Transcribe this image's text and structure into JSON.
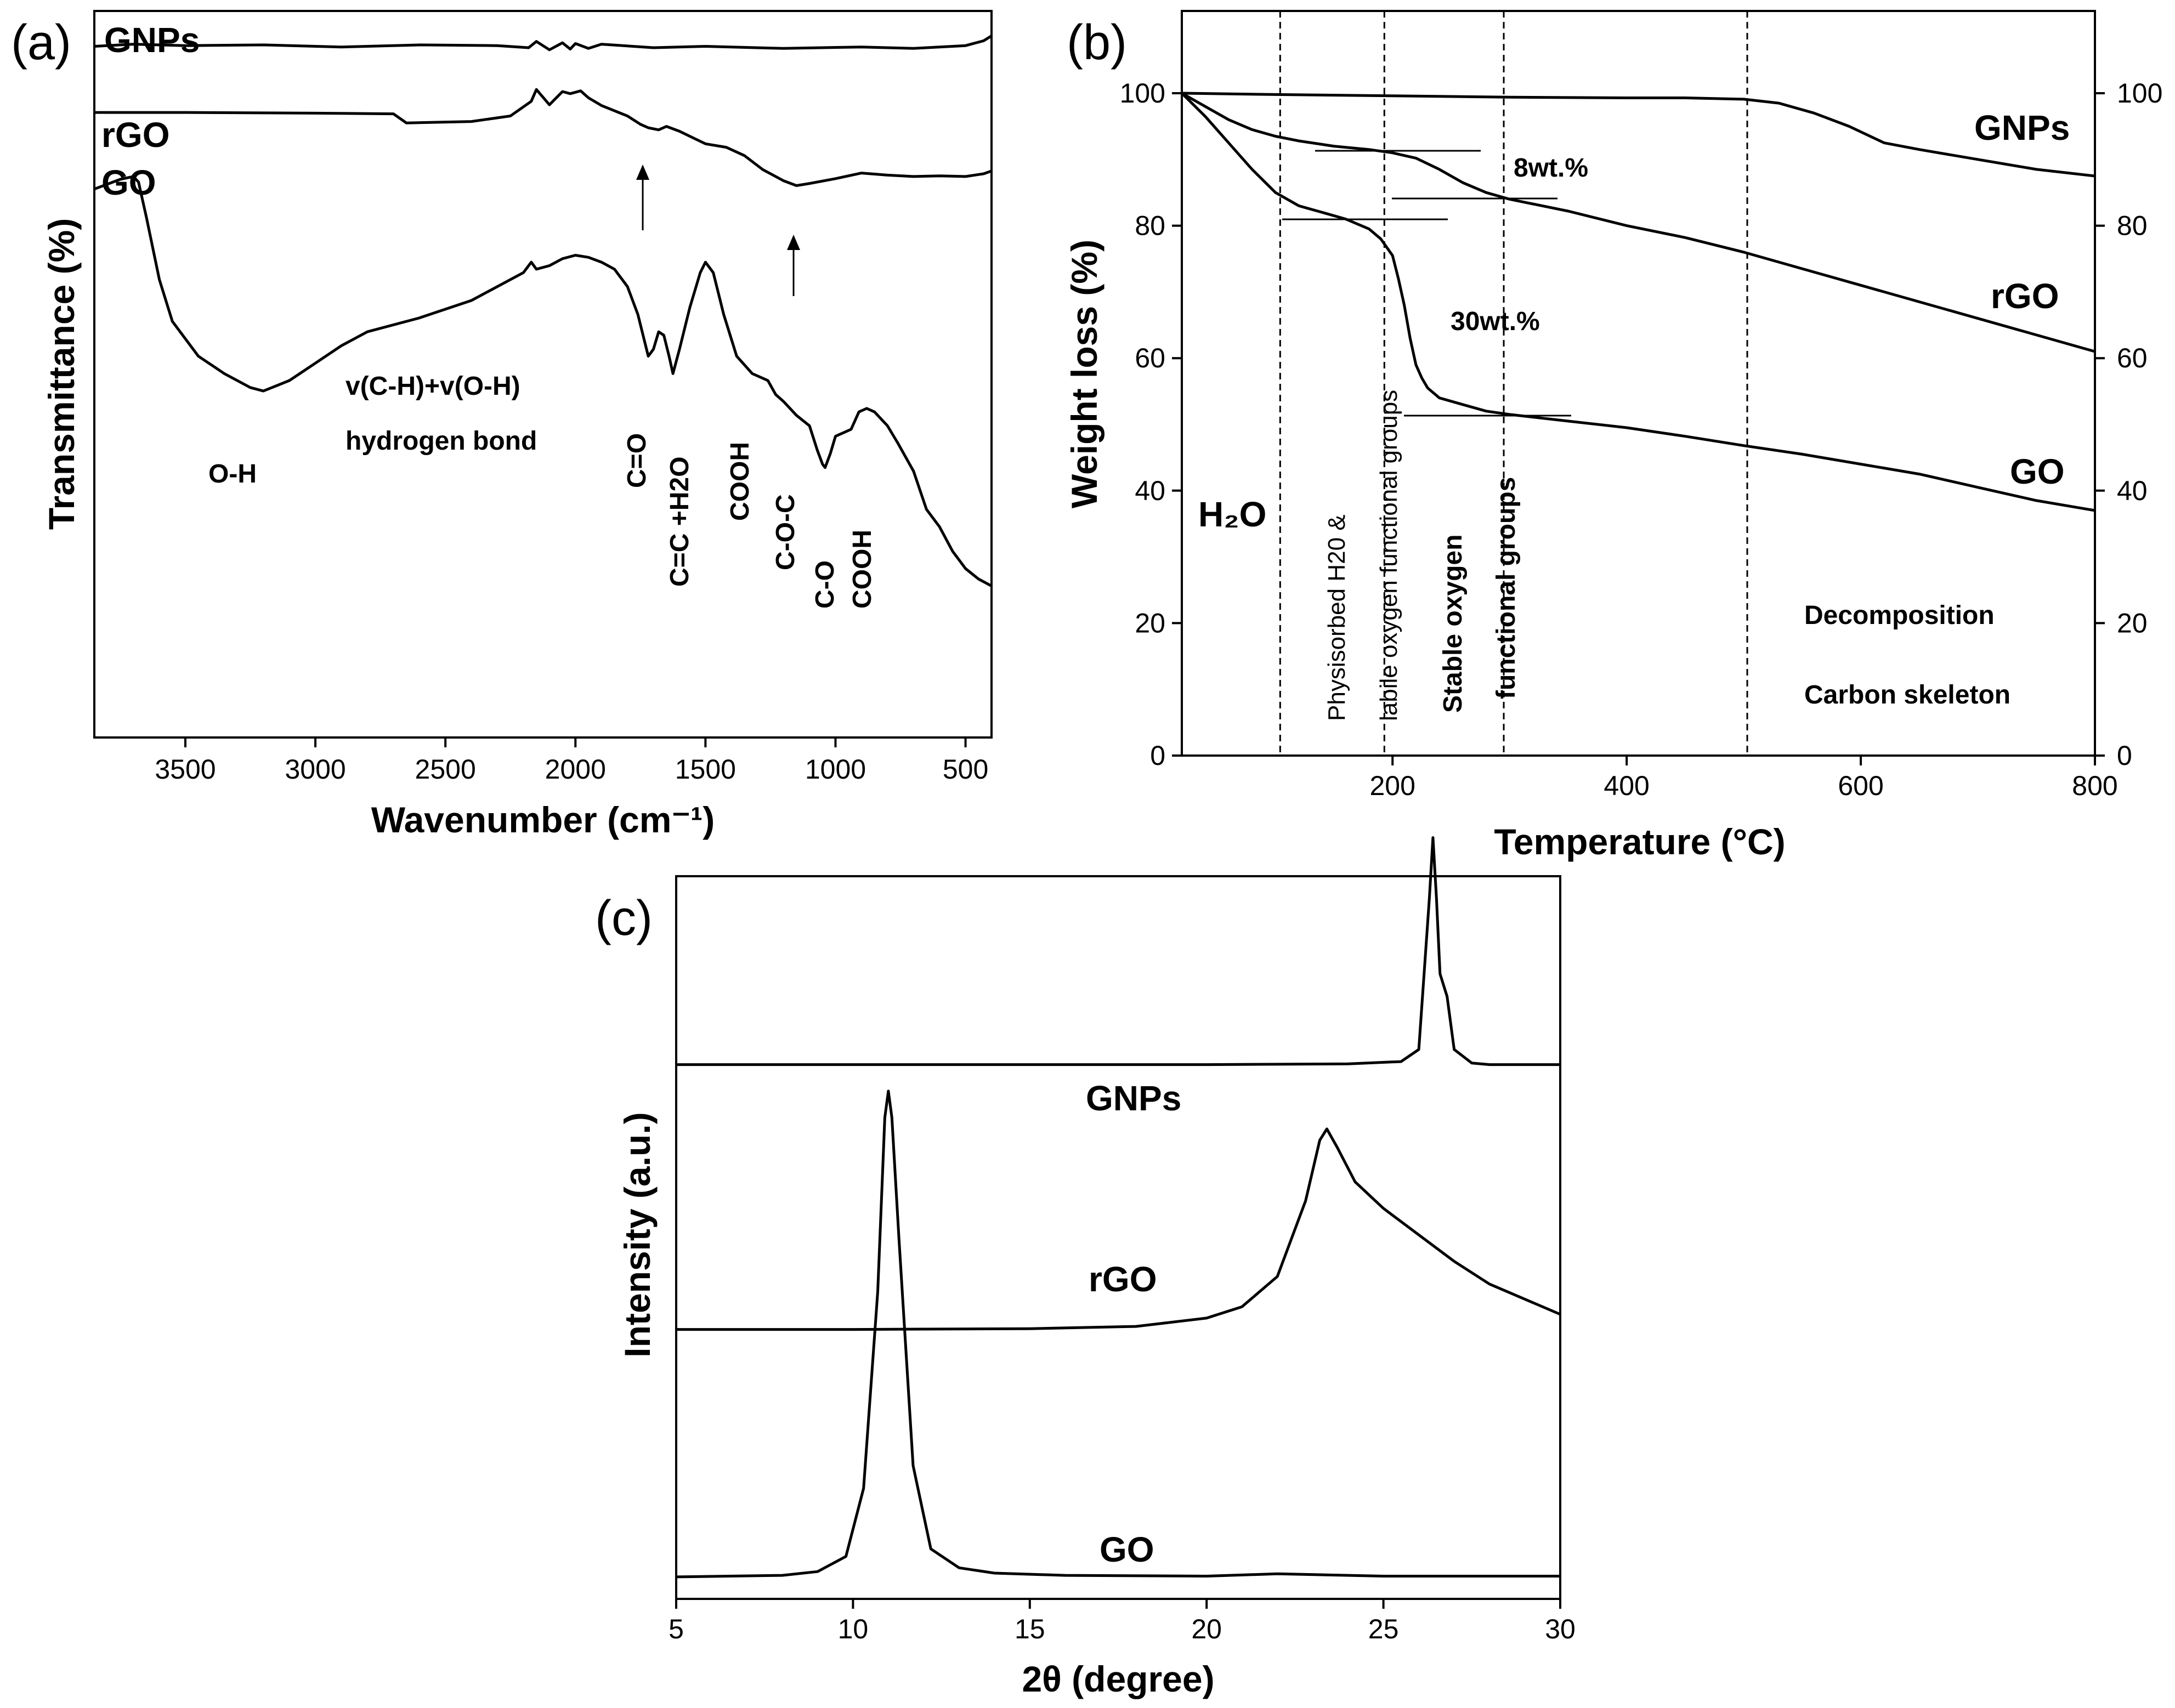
{
  "colors": {
    "line": "#000000",
    "background": "#ffffff"
  },
  "chart_data": [
    {
      "id": "a",
      "type": "line",
      "panel_label": "(a)",
      "title": "",
      "xlabel": "Wavenumber (cm⁻¹)",
      "ylabel": "Transmittance (%)",
      "xlim": [
        3850,
        400
      ],
      "x_reversed": true,
      "ylim": [
        0,
        100
      ],
      "xticks": [
        3500,
        3000,
        2500,
        2000,
        1500,
        1000,
        500
      ],
      "grid": false,
      "series": [
        {
          "name": "GNPs",
          "label": "GNPs",
          "x": [
            3850,
            3700,
            3500,
            3200,
            2900,
            2600,
            2300,
            2180,
            2150,
            2100,
            2050,
            2020,
            2000,
            1950,
            1900,
            1700,
            1500,
            1200,
            900,
            700,
            500,
            430,
            400
          ],
          "y": [
            96.5,
            96.8,
            96.6,
            96.7,
            96.4,
            96.7,
            96.6,
            96.3,
            97.2,
            96.0,
            97.0,
            96.1,
            96.9,
            96.2,
            96.8,
            96.3,
            96.5,
            96.2,
            96.4,
            96.2,
            96.6,
            97.3,
            98.0
          ]
        },
        {
          "name": "rGO",
          "label": "rGO",
          "x": [
            3850,
            3500,
            3000,
            2700,
            2650,
            2400,
            2250,
            2170,
            2150,
            2100,
            2050,
            2020,
            1980,
            1950,
            1900,
            1800,
            1750,
            1720,
            1680,
            1650,
            1600,
            1500,
            1420,
            1350,
            1280,
            1200,
            1150,
            1100,
            1000,
            900,
            800,
            700,
            600,
            500,
            430,
            400
          ],
          "y": [
            87.0,
            87.0,
            86.9,
            86.8,
            85.5,
            85.7,
            86.5,
            88.6,
            90.3,
            88.1,
            90.0,
            89.7,
            90.1,
            89.1,
            88.0,
            86.5,
            85.3,
            84.8,
            84.5,
            85.0,
            84.3,
            82.5,
            82.0,
            80.8,
            78.8,
            77.2,
            76.5,
            76.8,
            77.5,
            78.3,
            78.0,
            77.8,
            77.9,
            77.8,
            78.2,
            78.6
          ]
        },
        {
          "name": "GO",
          "label": "GO",
          "x": [
            3850,
            3750,
            3700,
            3680,
            3650,
            3600,
            3550,
            3450,
            3350,
            3250,
            3200,
            3100,
            3000,
            2900,
            2800,
            2600,
            2400,
            2200,
            2170,
            2150,
            2100,
            2050,
            2000,
            1950,
            1900,
            1850,
            1800,
            1760,
            1720,
            1700,
            1680,
            1660,
            1640,
            1625,
            1600,
            1560,
            1520,
            1500,
            1470,
            1430,
            1380,
            1320,
            1260,
            1230,
            1200,
            1150,
            1100,
            1070,
            1050,
            1040,
            1020,
            1000,
            970,
            940,
            910,
            880,
            850,
            800,
            760,
            700,
            650,
            600,
            550,
            500,
            450,
            400
          ],
          "y": [
            76.0,
            77.4,
            77.8,
            77.0,
            72.0,
            63.0,
            57.0,
            52.0,
            49.5,
            47.5,
            47.0,
            48.5,
            51.0,
            53.5,
            55.5,
            57.5,
            60.0,
            64.0,
            65.5,
            64.5,
            65.0,
            66.0,
            66.5,
            66.2,
            65.5,
            64.5,
            62.0,
            58.0,
            52.0,
            53.0,
            55.5,
            55.0,
            52.0,
            49.5,
            53.0,
            59.0,
            64.0,
            65.5,
            64.0,
            58.0,
            52.0,
            49.5,
            48.5,
            46.5,
            45.5,
            43.5,
            42.0,
            38.5,
            36.5,
            36.0,
            38.0,
            40.5,
            41.0,
            41.5,
            44.0,
            44.5,
            44.0,
            42.0,
            39.5,
            35.5,
            30.0,
            27.5,
            24.0,
            21.5,
            20.0,
            19.0
          ]
        }
      ],
      "annotations": [
        "O-H",
        "v(C-H)+v(O-H)",
        "hydrogen bond",
        "C=O",
        "C=C +H2O",
        "COOH",
        "C-O-C",
        "C-O",
        "COOH"
      ]
    },
    {
      "id": "b",
      "type": "line",
      "panel_label": "(b)",
      "title": "",
      "xlabel": "Temperature (°C)",
      "ylabel": "Weight loss (%)",
      "xlim": [
        20,
        800
      ],
      "ylim": [
        0,
        110
      ],
      "xticks": [
        200,
        400,
        600,
        800
      ],
      "yticks": [
        0,
        20,
        40,
        60,
        80,
        100
      ],
      "right_yticks": [
        0,
        20,
        40,
        60,
        80,
        100
      ],
      "dashed_x": [
        104,
        193,
        295,
        503
      ],
      "grid": false,
      "series": [
        {
          "name": "GNPs",
          "label": "GNPs",
          "x": [
            20,
            100,
            200,
            300,
            400,
            450,
            500,
            530,
            560,
            590,
            620,
            650,
            700,
            750,
            800
          ],
          "y": [
            100,
            99.8,
            99.6,
            99.4,
            99.3,
            99.3,
            99.1,
            98.5,
            97.0,
            95.0,
            92.5,
            91.5,
            90.0,
            88.5,
            87.5
          ]
        },
        {
          "name": "rGO",
          "label": "rGO",
          "x": [
            20,
            40,
            60,
            80,
            100,
            120,
            150,
            180,
            200,
            220,
            240,
            260,
            280,
            300,
            350,
            400,
            450,
            500,
            550,
            600,
            650,
            700,
            750,
            800
          ],
          "y": [
            100,
            98.0,
            96.0,
            94.5,
            93.5,
            92.8,
            92.0,
            91.5,
            91.0,
            90.2,
            88.5,
            86.5,
            85.0,
            84.0,
            82.2,
            80.0,
            78.2,
            76.0,
            73.5,
            71.0,
            68.5,
            66.0,
            63.5,
            61.0
          ]
        },
        {
          "name": "GO",
          "label": "GO",
          "x": [
            20,
            40,
            60,
            80,
            100,
            120,
            140,
            160,
            180,
            190,
            200,
            205,
            210,
            215,
            220,
            225,
            230,
            240,
            260,
            280,
            300,
            350,
            400,
            450,
            500,
            550,
            600,
            650,
            700,
            750,
            800
          ],
          "y": [
            100,
            96.5,
            92.5,
            88.5,
            85.0,
            83.0,
            82.0,
            81.0,
            79.5,
            78.0,
            75.5,
            72.0,
            68.0,
            63.0,
            59.0,
            57.0,
            55.5,
            54.0,
            53.0,
            52.0,
            51.5,
            50.5,
            49.5,
            48.2,
            46.8,
            45.5,
            44.0,
            42.5,
            40.5,
            38.5,
            37.0
          ]
        }
      ],
      "annotations": [
        "8wt.%",
        "30wt.%",
        "H₂O",
        "Physisorbed  H20 &",
        "labile oxygen functional groups",
        "Stable oxygen",
        "functional groups",
        "Decomposition",
        "Carbon skeleton"
      ]
    },
    {
      "id": "c",
      "type": "line",
      "panel_label": "(c)",
      "title": "",
      "xlabel": "2θ (degree)",
      "ylabel": "Intensity (a.u.)",
      "xlim": [
        5,
        30
      ],
      "ylim": [
        0,
        100
      ],
      "xticks": [
        5,
        10,
        15,
        20,
        25,
        30
      ],
      "grid": false,
      "series": [
        {
          "name": "GNPs",
          "label": "GNPs",
          "x": [
            5,
            10,
            15,
            20,
            24,
            25.5,
            26.0,
            26.3,
            26.4,
            26.5,
            26.6,
            26.8,
            27.0,
            27.5,
            28,
            30
          ],
          "y": [
            68.0,
            68.0,
            68.0,
            68.0,
            68.1,
            68.4,
            70.0,
            90.0,
            98.0,
            90.0,
            80.0,
            77.0,
            70.0,
            68.2,
            68.0,
            68.0
          ]
        },
        {
          "name": "rGO",
          "label": "rGO",
          "x": [
            5,
            10,
            15,
            18,
            20,
            21,
            22,
            22.8,
            23.2,
            23.4,
            23.7,
            24.2,
            25,
            26,
            27,
            28,
            29,
            30
          ],
          "y": [
            33.0,
            33.0,
            33.1,
            33.4,
            34.5,
            36.0,
            40.0,
            50.0,
            58.0,
            59.5,
            57.0,
            52.5,
            49.0,
            45.5,
            42.0,
            39.0,
            37.0,
            35.0
          ]
        },
        {
          "name": "GO",
          "label": "GO",
          "x": [
            5,
            8,
            9,
            9.8,
            10.3,
            10.7,
            10.9,
            11.0,
            11.1,
            11.3,
            11.7,
            12.2,
            13,
            14,
            16,
            20,
            22,
            25,
            30
          ],
          "y": [
            0.3,
            0.5,
            1.0,
            3.0,
            12.0,
            38.0,
            61.0,
            64.5,
            61.0,
            45.0,
            15.0,
            4.0,
            1.5,
            0.8,
            0.5,
            0.4,
            0.7,
            0.4,
            0.4
          ]
        }
      ]
    }
  ]
}
